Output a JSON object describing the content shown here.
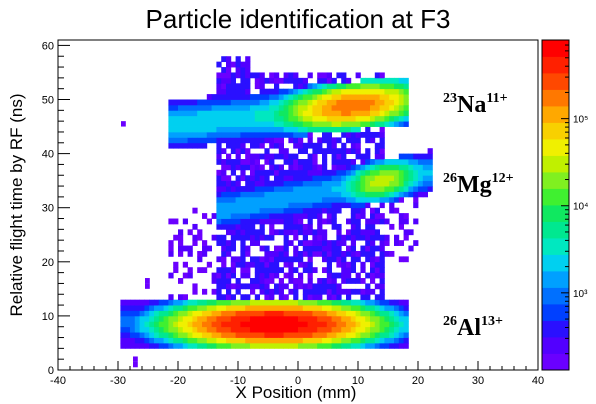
{
  "chart_data": {
    "type": "heatmap",
    "title": "Particle identification at F3",
    "xlabel": "X Position (mm)",
    "ylabel": "Relative flight time by RF (ns)",
    "xlim": [
      -40,
      40
    ],
    "ylim": [
      0,
      61
    ],
    "x_ticks": [
      "-40",
      "-30",
      "-20",
      "-10",
      "0",
      "10",
      "20",
      "30",
      "40"
    ],
    "y_ticks": [
      "0",
      "10",
      "20",
      "30",
      "40",
      "50",
      "60"
    ],
    "colorbar": {
      "scale": "log",
      "tick_labels": [
        "10³",
        "10⁴",
        "10⁵"
      ],
      "tick_values": [
        1000,
        10000,
        100000
      ],
      "range": [
        130,
        800000
      ],
      "palette": [
        "#6a00ff",
        "#5200ff",
        "#2a10ff",
        "#0040ff",
        "#0070ff",
        "#00a0ff",
        "#00d0f0",
        "#00e8c0",
        "#00e890",
        "#10e860",
        "#40f030",
        "#80f020",
        "#c0f000",
        "#f0f000",
        "#f8d000",
        "#ffa800",
        "#ff7800",
        "#ff4800",
        "#ff2000",
        "#ff0000"
      ]
    },
    "grid": false,
    "clusters": [
      {
        "label": "²³Na¹¹⁺",
        "nuclide": "Na",
        "mass_number": "23",
        "charge": "11+",
        "x_range": [
          -22,
          18
        ],
        "y_center": 48.5,
        "peak_x": 9,
        "peak_counts": 200000
      },
      {
        "label": "²⁶Mg¹²⁺",
        "nuclide": "Mg",
        "mass_number": "26",
        "charge": "12+",
        "x_range": [
          -14,
          18
        ],
        "y_center": 35,
        "peak_x": 14,
        "peak_counts": 30000
      },
      {
        "label": "²⁶Al¹³⁺",
        "nuclide": "Al",
        "mass_number": "26",
        "charge": "13+",
        "x_range": [
          -30,
          18
        ],
        "y_center": 8.5,
        "peak_x": -4,
        "peak_counts": 800000
      }
    ]
  }
}
